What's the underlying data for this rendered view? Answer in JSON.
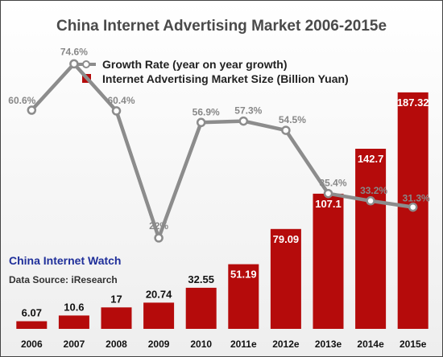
{
  "title": "China Internet Advertising Market 2006-2015e",
  "watermark": "China Internet Watch",
  "source": "Data Source: iResearch",
  "colors": {
    "bar": "#b50b0b",
    "line": "#8c8c8c",
    "title": "#4a4a4a",
    "watermark": "#1f2f9a"
  },
  "chart_data": {
    "type": "bar",
    "title": "China Internet Advertising Market 2006-2015e",
    "xlabel": "",
    "ylabel": "",
    "categories": [
      "2006",
      "2007",
      "2008",
      "2009",
      "2010",
      "2011e",
      "2012e",
      "2013e",
      "2014e",
      "2015e"
    ],
    "series": [
      {
        "name": "Internet Advertising Market Size (Billion Yuan)",
        "type": "bar",
        "values": [
          6.07,
          10.6,
          17,
          20.74,
          32.55,
          51.19,
          79.09,
          107.1,
          142.7,
          187.32
        ],
        "labels": [
          "6.07",
          "10.6",
          "17",
          "20.74",
          "32.55",
          "51.19",
          "79.09",
          "107.1",
          "142.7",
          "187.32"
        ]
      },
      {
        "name": "Growth Rate (year on year growth)",
        "type": "line",
        "values": [
          60.6,
          74.6,
          60.4,
          22,
          56.9,
          57.3,
          54.5,
          35.4,
          33.2,
          31.3
        ],
        "labels": [
          "60.6%",
          "74.6%",
          "60.4%",
          "22%",
          "56.9%",
          "57.3%",
          "54.5%",
          "35.4%",
          "33.2%",
          "31.3%"
        ]
      }
    ],
    "legend": [
      "Growth Rate (year on year growth)",
      "Internet Advertising Market Size (Billion Yuan)"
    ],
    "legend_position": "top-center",
    "ylim_bar": [
      0,
      200
    ],
    "ylim_line": [
      0,
      100
    ],
    "grid": false
  }
}
